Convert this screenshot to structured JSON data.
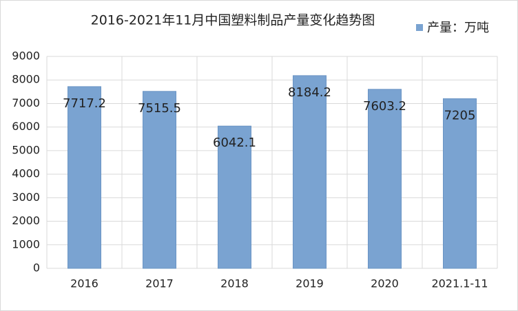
{
  "chart_data": {
    "type": "bar",
    "title": "2016-2021年11月中国塑料制品产量变化趋势图",
    "categories": [
      "2016",
      "2017",
      "2018",
      "2019",
      "2020",
      "2021.1-11"
    ],
    "series": [
      {
        "name": "产量：万吨",
        "color": "#7aa3d1",
        "values": [
          7717.2,
          7515.5,
          6042.1,
          8184.2,
          7603.2,
          7205
        ]
      }
    ],
    "ylim": [
      0,
      9000
    ],
    "yticks": [
      0,
      1000,
      2000,
      3000,
      4000,
      5000,
      6000,
      7000,
      8000,
      9000
    ],
    "grid": true,
    "legend": "top-right"
  }
}
